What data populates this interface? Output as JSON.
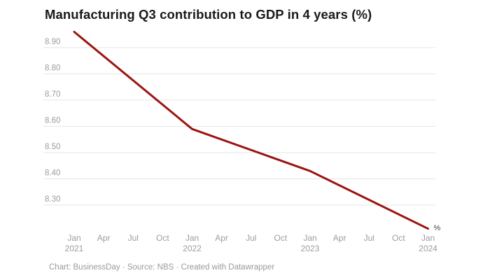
{
  "title": "Manufacturing Q3 contribution to GDP in 4 years (%)",
  "footer": {
    "text": "Chart: BusinessDay · Source: NBS · Created with Datawrapper"
  },
  "chart_data": {
    "type": "line",
    "title": "Manufacturing Q3 contribution to GDP in 4 years (%)",
    "x": [
      "Jan 2021",
      "Jan 2022",
      "Jan 2023",
      "Jan 2024"
    ],
    "series": [
      {
        "name": "Manufacturing Q3 contribution to GDP (%)",
        "values": [
          8.96,
          8.59,
          8.43,
          8.21
        ]
      }
    ],
    "unit_label": "%",
    "y_tick_labels": [
      "8.90",
      "8.80",
      "8.70",
      "8.60",
      "8.50",
      "8.40",
      "8.30"
    ],
    "y_tick_values": [
      8.9,
      8.8,
      8.7,
      8.6,
      8.5,
      8.4,
      8.3
    ],
    "x_ticks": [
      {
        "month": "Jan",
        "year": "2021"
      },
      {
        "month": "Apr"
      },
      {
        "month": "Jul"
      },
      {
        "month": "Oct"
      },
      {
        "month": "Jan",
        "year": "2022"
      },
      {
        "month": "Apr"
      },
      {
        "month": "Jul"
      },
      {
        "month": "Oct"
      },
      {
        "month": "Jan",
        "year": "2023"
      },
      {
        "month": "Apr"
      },
      {
        "month": "Jul"
      },
      {
        "month": "Oct"
      },
      {
        "month": "Jan",
        "year": "2024"
      }
    ],
    "ylim": [
      8.2,
      8.97
    ],
    "grid": true,
    "legend": "none",
    "colors": {
      "line": "#9c1410",
      "grid": "#e5e5e5",
      "axis_label": "#9c9c9c",
      "title": "#1a1a1a",
      "footer": "#9a9a9a",
      "unit_label": "#4a4a4a"
    }
  }
}
